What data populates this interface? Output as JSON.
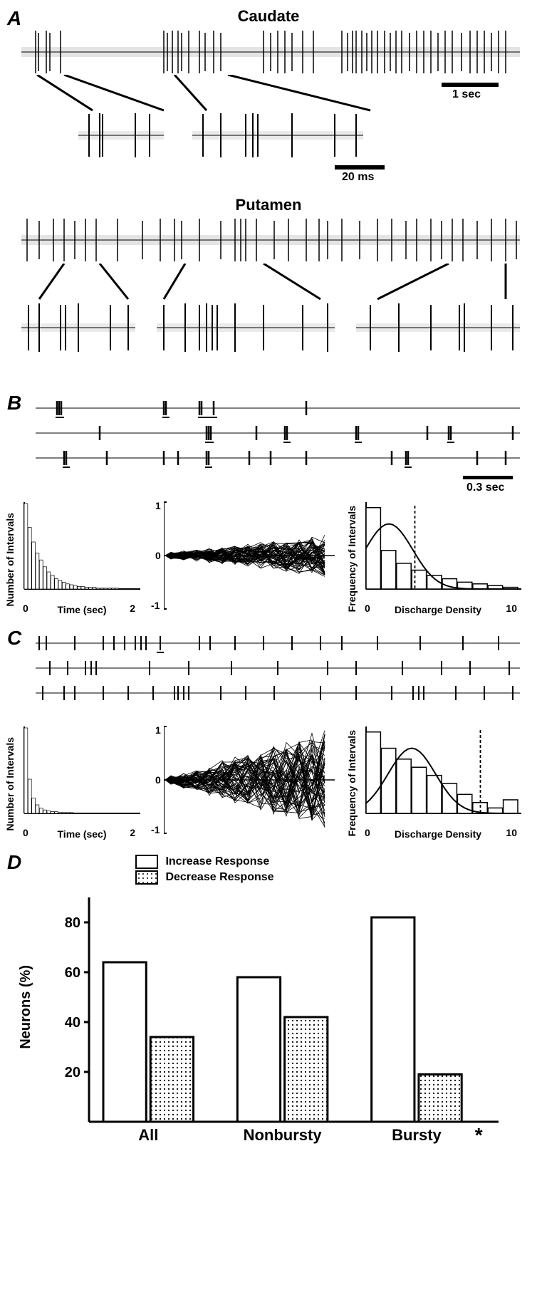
{
  "panelA": {
    "label": "A",
    "regions": {
      "caudate": {
        "title": "Caudate",
        "scalebar_main": "1 sec",
        "scalebar_zoom": "20 ms"
      },
      "putamen": {
        "title": "Putamen"
      }
    }
  },
  "panelB": {
    "label": "B",
    "scalebar": "0.3 sec",
    "isi_hist": {
      "ylabel": "Number of Intervals",
      "xlabel": "Time (sec)",
      "xmin": 0,
      "xmax": 2,
      "bar_color": "#ffffff",
      "border_color": "#000000",
      "bars": [
        100,
        72,
        55,
        42,
        34,
        26,
        20,
        16,
        12,
        10,
        8,
        6,
        5,
        4,
        3,
        3,
        2,
        2,
        2,
        1,
        1,
        1,
        1,
        1,
        1,
        0,
        0,
        0,
        0,
        0
      ]
    },
    "zscore": {
      "ymin": -1,
      "ymax": 1,
      "ytick": [
        -1,
        0,
        1
      ]
    },
    "density": {
      "ylabel": "Frequency of Intervals",
      "xlabel": "Discharge Density",
      "xmin": 0,
      "xmax": 10,
      "xtick": [
        0,
        10
      ],
      "bars": [
        95,
        45,
        30,
        22,
        16,
        12,
        8,
        6,
        4,
        2
      ],
      "threshold_x": 3.2,
      "bar_color": "#ffffff",
      "border_color": "#000000"
    }
  },
  "panelC": {
    "label": "C",
    "isi_hist": {
      "ylabel": "Number of Intervals",
      "xlabel": "Time (sec)",
      "xmin": 0,
      "xmax": 2,
      "bars": [
        100,
        40,
        18,
        10,
        6,
        4,
        3,
        2,
        2,
        1,
        1,
        1,
        1,
        0,
        0,
        0,
        0,
        0,
        0,
        0,
        0,
        0,
        0,
        0,
        0,
        0,
        0,
        0,
        0,
        0
      ]
    },
    "zscore": {
      "ymin": -1,
      "ymax": 1,
      "ytick": [
        -1,
        0,
        1
      ]
    },
    "density": {
      "ylabel": "Frequency of Intervals",
      "xlabel": "Discharge Density",
      "xmin": 0,
      "xmax": 10,
      "xtick": [
        0,
        10
      ],
      "bars": [
        60,
        48,
        40,
        34,
        28,
        22,
        14,
        8,
        4,
        10
      ],
      "threshold_x": 7.5
    }
  },
  "panelD": {
    "label": "D",
    "legend": {
      "increase": "Increase Response",
      "decrease": "Decrease Response"
    },
    "ylabel": "Neurons (%)",
    "ytick": [
      20,
      40,
      60,
      80
    ],
    "ymax": 90,
    "categories": [
      "All",
      "Nonbursty",
      "Bursty"
    ],
    "significance_marker": "*",
    "bars": {
      "All": {
        "increase": 64,
        "decrease": 34
      },
      "Nonbursty": {
        "increase": 58,
        "decrease": 42
      },
      "Bursty": {
        "increase": 82,
        "decrease": 19
      }
    },
    "colors": {
      "increase_fill": "#ffffff",
      "decrease_fill": "pattern",
      "border": "#000000",
      "axis": "#000000"
    }
  }
}
